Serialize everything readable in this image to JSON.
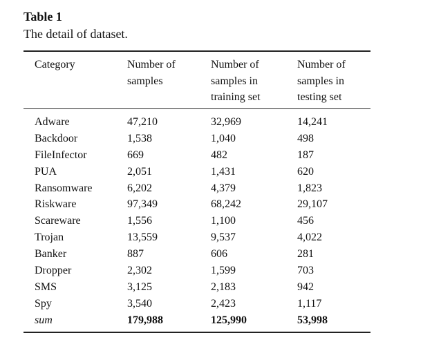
{
  "caption": {
    "label": "Table 1",
    "text": "The detail of dataset."
  },
  "table": {
    "headers": [
      [
        "Category"
      ],
      [
        "Number of",
        "samples"
      ],
      [
        "Number of",
        "samples in",
        "training set"
      ],
      [
        "Number of",
        "samples in",
        "testing set"
      ]
    ],
    "rows": [
      [
        "Adware",
        "47,210",
        "32,969",
        "14,241"
      ],
      [
        "Backdoor",
        "1,538",
        "1,040",
        "498"
      ],
      [
        "FileInfector",
        "669",
        "482",
        "187"
      ],
      [
        "PUA",
        "2,051",
        "1,431",
        "620"
      ],
      [
        "Ransomware",
        "6,202",
        "4,379",
        "1,823"
      ],
      [
        "Riskware",
        "97,349",
        "68,242",
        "29,107"
      ],
      [
        "Scareware",
        "1,556",
        "1,100",
        "456"
      ],
      [
        "Trojan",
        "13,559",
        "9,537",
        "4,022"
      ],
      [
        "Banker",
        "887",
        "606",
        "281"
      ],
      [
        "Dropper",
        "2,302",
        "1,599",
        "703"
      ],
      [
        "SMS",
        "3,125",
        "2,183",
        "942"
      ],
      [
        "Spy",
        "3,540",
        "2,423",
        "1,117"
      ]
    ],
    "sum_row": [
      "sum",
      "179,988",
      "125,990",
      "53,998"
    ]
  }
}
